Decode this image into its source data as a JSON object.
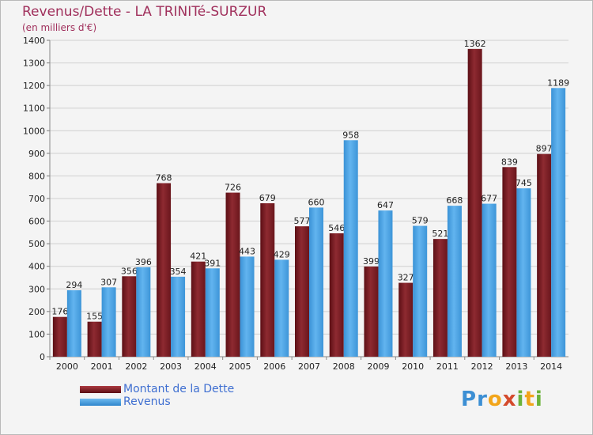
{
  "title": "Revenus/Dette - LA TRINITé-SURZUR",
  "subtitle": "(en milliers d'€)",
  "logo": {
    "text": "Proxiti"
  },
  "colors": {
    "dette": "#7a1c22",
    "revenus": "#4aa2e2",
    "axis_text": "#222222",
    "grid": "#cfcfcf",
    "title": "#a0305c",
    "legend_text": "#3f6fd1"
  },
  "chart_data": {
    "type": "bar",
    "title": "Revenus/Dette - LA TRINITé-SURZUR",
    "subtitle": "(en milliers d'€)",
    "xlabel": "",
    "ylabel": "",
    "categories": [
      "2000",
      "2001",
      "2002",
      "2003",
      "2004",
      "2005",
      "2006",
      "2007",
      "2008",
      "2009",
      "2010",
      "2011",
      "2012",
      "2013",
      "2014"
    ],
    "series": [
      {
        "name": "Montant de la Dette",
        "values": [
          176,
          155,
          356,
          768,
          421,
          726,
          679,
          577,
          546,
          399,
          327,
          521,
          1362,
          839,
          897
        ]
      },
      {
        "name": "Revenus",
        "values": [
          294,
          307,
          396,
          354,
          391,
          443,
          429,
          660,
          958,
          647,
          579,
          668,
          677,
          745,
          1189
        ]
      }
    ],
    "ylim": [
      0,
      1400
    ],
    "yticks": [
      0,
      100,
      200,
      300,
      400,
      500,
      600,
      700,
      800,
      900,
      1000,
      1100,
      1200,
      1300,
      1400
    ],
    "grid": true,
    "legend_position": "bottom-left"
  }
}
